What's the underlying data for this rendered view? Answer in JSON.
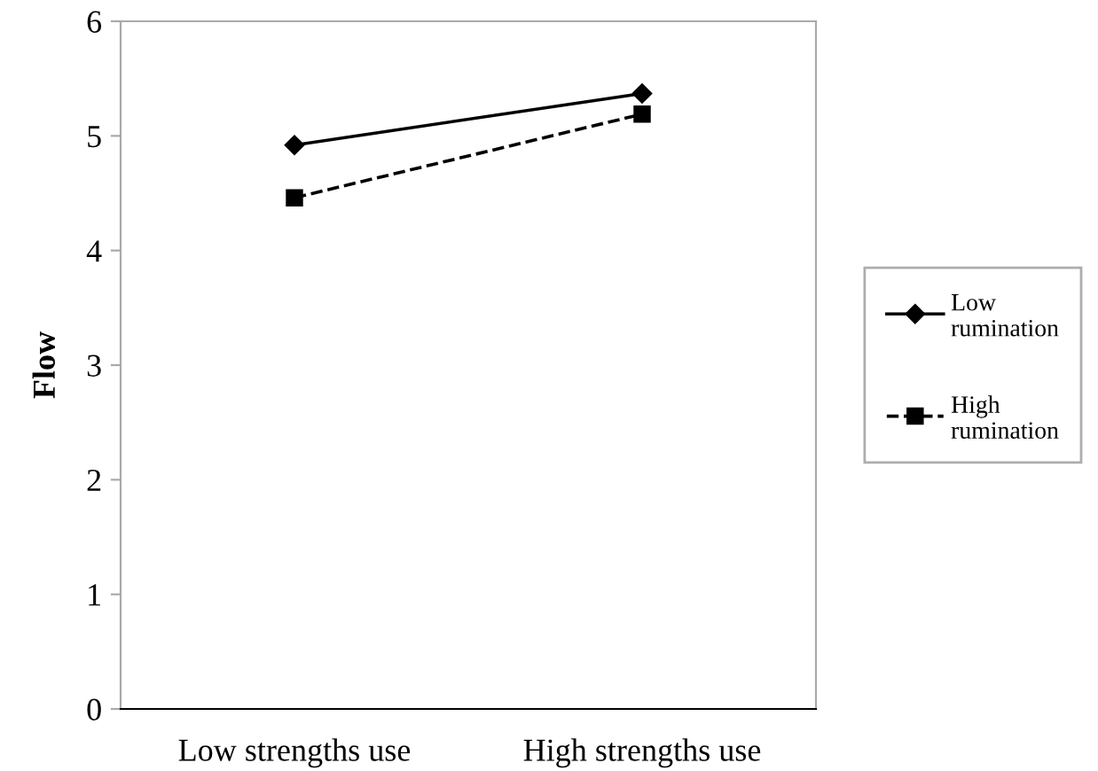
{
  "chart_data": {
    "type": "line",
    "ylabel": "Flow",
    "categories": [
      "Low strengths use",
      "High strengths use"
    ],
    "series": [
      {
        "name": "Low rumination",
        "color": "#000000",
        "values": [
          4.92,
          5.37
        ],
        "marker": "diamond",
        "line_style": "solid"
      },
      {
        "name": "High rumination",
        "color": "#000000",
        "values": [
          4.46,
          5.19
        ],
        "marker": "square",
        "line_style": "dashed"
      }
    ],
    "ylim": [
      0,
      6
    ],
    "yticks": [
      0,
      1,
      2,
      3,
      4,
      5,
      6
    ],
    "grid": false,
    "legend": "right"
  }
}
